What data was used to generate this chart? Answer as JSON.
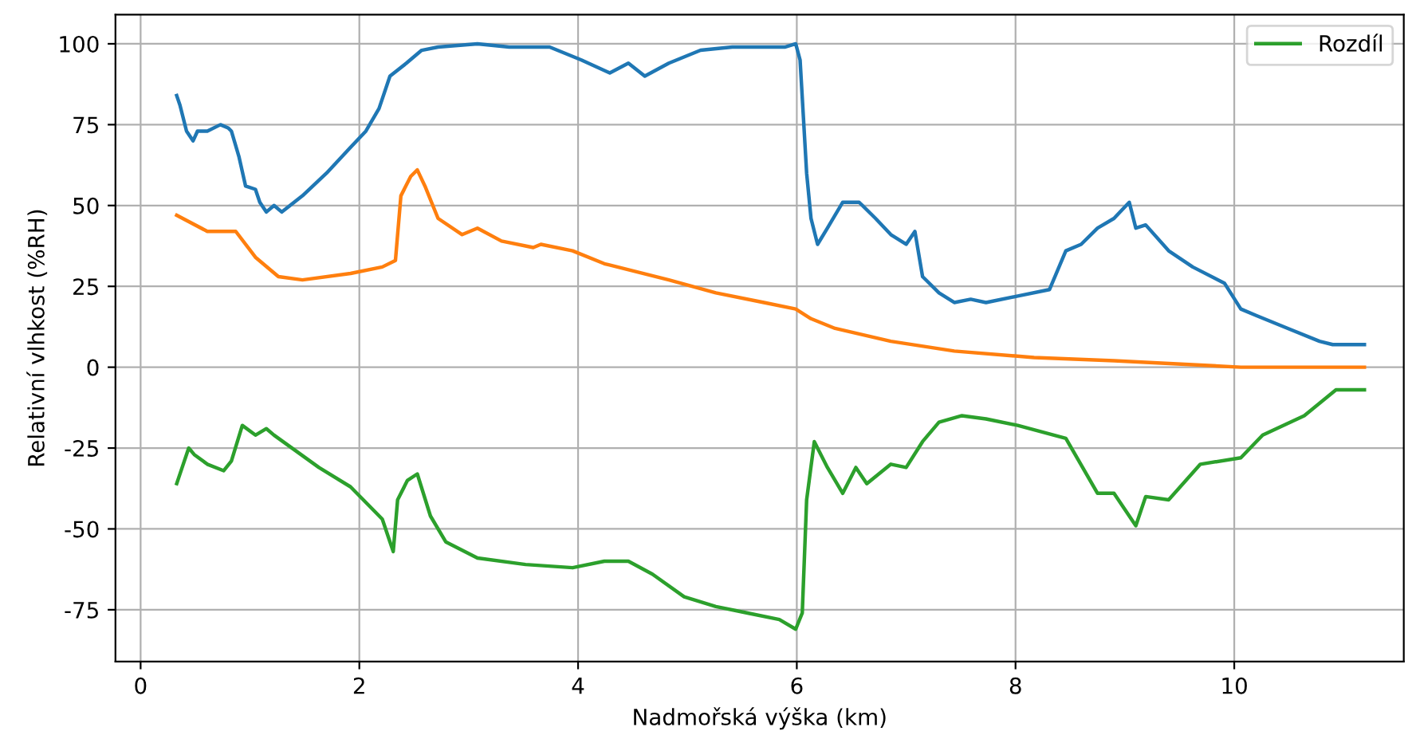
{
  "chart_data": {
    "type": "line",
    "xlabel": "Nadmořská výška (km)",
    "ylabel": "Relativní vlhkost (%RH)",
    "xlim": [
      -0.23,
      11.55
    ],
    "ylim": [
      -91,
      109
    ],
    "xticks": [
      0,
      2,
      4,
      6,
      8,
      10
    ],
    "yticks": [
      -75,
      -50,
      -25,
      0,
      25,
      50,
      75,
      100
    ],
    "grid": true,
    "legend": "top right",
    "series": [
      {
        "color": "#1f77b4",
        "x": [
          0.33,
          0.36,
          0.42,
          0.48,
          0.52,
          0.61,
          0.73,
          0.8,
          0.83,
          0.9,
          0.96,
          1.05,
          1.09,
          1.15,
          1.22,
          1.29,
          1.48,
          1.7,
          1.92,
          2.06,
          2.18,
          2.28,
          2.43,
          2.57,
          2.72,
          3.08,
          3.37,
          3.74,
          4.03,
          4.29,
          4.46,
          4.61,
          4.83,
          5.12,
          5.41,
          5.89,
          5.99,
          6.03,
          6.09,
          6.13,
          6.19,
          6.28,
          6.42,
          6.57,
          6.72,
          6.86,
          7.0,
          7.08,
          7.15,
          7.3,
          7.44,
          7.59,
          7.73,
          8.02,
          8.31,
          8.46,
          8.6,
          8.75,
          8.9,
          9.04,
          9.1,
          9.19,
          9.4,
          9.62,
          9.91,
          10.06,
          10.2,
          10.49,
          10.78,
          10.9,
          11.19
        ],
        "values": [
          84,
          81,
          73,
          70,
          73,
          73,
          75,
          74,
          73,
          65,
          56,
          55,
          51,
          48,
          50,
          48,
          53,
          60,
          68,
          73,
          80,
          90,
          94,
          98,
          99,
          100,
          99,
          99,
          95,
          91,
          94,
          90,
          94,
          98,
          99,
          99,
          100,
          95,
          60,
          46,
          38,
          43,
          51,
          51,
          46,
          41,
          38,
          42,
          28,
          23,
          20,
          21,
          20,
          22,
          24,
          36,
          38,
          43,
          46,
          51,
          43,
          44,
          36,
          31,
          26,
          18,
          16,
          12,
          8,
          7,
          7
        ]
      },
      {
        "color": "#ff7f0e",
        "x": [
          0.33,
          0.61,
          0.87,
          1.05,
          1.26,
          1.48,
          1.92,
          2.21,
          2.33,
          2.38,
          2.47,
          2.53,
          2.6,
          2.72,
          2.94,
          3.08,
          3.3,
          3.59,
          3.66,
          3.95,
          4.24,
          4.83,
          5.26,
          5.7,
          5.99,
          6.13,
          6.35,
          6.86,
          7.44,
          8.17,
          8.9,
          10.06,
          11.19
        ],
        "values": [
          47,
          42,
          42,
          34,
          28,
          27,
          29,
          31,
          33,
          53,
          59,
          61,
          56,
          46,
          41,
          43,
          39,
          37,
          38,
          36,
          32,
          27,
          23,
          20,
          18,
          15,
          12,
          8,
          5,
          3,
          2,
          0,
          0
        ]
      },
      {
        "name": "Rozdíl",
        "color": "#2ca02c",
        "x": [
          0.33,
          0.38,
          0.44,
          0.49,
          0.61,
          0.76,
          0.83,
          0.93,
          1.05,
          1.15,
          1.22,
          1.63,
          1.92,
          2.21,
          2.28,
          2.31,
          2.35,
          2.44,
          2.53,
          2.65,
          2.79,
          3.08,
          3.52,
          3.95,
          4.24,
          4.46,
          4.68,
          4.97,
          5.26,
          5.55,
          5.84,
          5.99,
          6.05,
          6.09,
          6.16,
          6.28,
          6.42,
          6.54,
          6.64,
          6.86,
          7.0,
          7.15,
          7.3,
          7.51,
          7.73,
          8.02,
          8.46,
          8.75,
          8.9,
          9.1,
          9.19,
          9.4,
          9.69,
          10.06,
          10.26,
          10.64,
          10.93,
          11.19
        ],
        "values": [
          -36,
          -31,
          -25,
          -27,
          -30,
          -32,
          -29,
          -18,
          -21,
          -19,
          -21,
          -31,
          -37,
          -47,
          -54,
          -57,
          -41,
          -35,
          -33,
          -46,
          -54,
          -59,
          -61,
          -62,
          -60,
          -60,
          -64,
          -71,
          -74,
          -76,
          -78,
          -81,
          -76,
          -41,
          -23,
          -31,
          -39,
          -31,
          -36,
          -30,
          -31,
          -23,
          -17,
          -15,
          -16,
          -18,
          -22,
          -39,
          -39,
          -49,
          -40,
          -41,
          -30,
          -28,
          -21,
          -15,
          -7,
          -7
        ]
      }
    ]
  }
}
